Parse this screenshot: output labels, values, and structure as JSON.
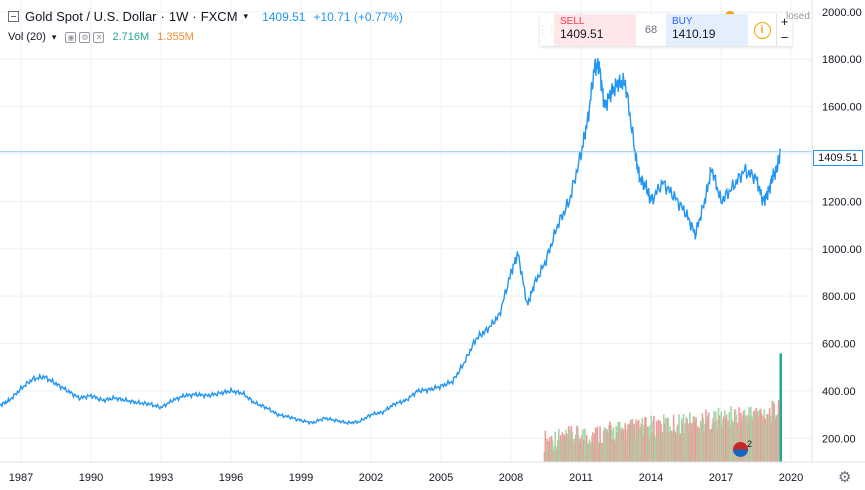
{
  "header": {
    "symbol_name": "Gold Spot / U.S. Dollar",
    "interval": "1W",
    "exchange": "FXCM",
    "last_price": "1409.51",
    "change": "+10.71 (+0.77%)"
  },
  "volume_legend": {
    "label": "Vol (20)",
    "value1": "2.716M",
    "value2": "1.355M"
  },
  "trade_panel": {
    "sell_label": "SELL",
    "sell_price": "1409.51",
    "spread": "68",
    "buy_label": "BUY",
    "buy_price": "1410.19",
    "zoom_in": "+",
    "zoom_out": "−"
  },
  "market_status": "losed",
  "price_tag": "1409.51",
  "event_count": "2",
  "colors": {
    "line": "#2196f3",
    "vol_up": "#a5d6a7",
    "vol_down": "#ef9a9a",
    "vol_last": "#26a69a",
    "grid": "#eef0f3"
  },
  "chart_data": {
    "type": "line",
    "x_range": [
      1986.1,
      2020.9
    ],
    "y_range": [
      100,
      2050
    ],
    "y_ticks": [
      "200.00",
      "400.00",
      "600.00",
      "800.00",
      "1000.00",
      "1200.00",
      "1400.00",
      "1600.00",
      "1800.00",
      "2000.00"
    ],
    "x_ticks": [
      "1987",
      "1990",
      "1993",
      "1996",
      "1999",
      "2002",
      "2005",
      "2008",
      "2011",
      "2014",
      "2017",
      "2020"
    ],
    "last_value": 1409.51,
    "series": [
      {
        "x": [
          1986.1,
          1986.5,
          1987.0,
          1987.5,
          1988.0,
          1988.5,
          1989.0,
          1989.5,
          1990.0,
          1990.5,
          1991.0,
          1991.5,
          1992.0,
          1992.5,
          1993.0,
          1993.5,
          1994.0,
          1994.5,
          1995.0,
          1995.5,
          1996.0,
          1996.5,
          1997.0,
          1997.5,
          1998.0,
          1998.5,
          1999.0,
          1999.5,
          2000.0,
          2000.5,
          2001.0,
          2001.5,
          2002.0,
          2002.5,
          2003.0,
          2003.5,
          2004.0,
          2004.5,
          2005.0,
          2005.5,
          2006.0,
          2006.5,
          2007.0,
          2007.5,
          2008.0,
          2008.3,
          2008.7,
          2009.0,
          2009.5,
          2010.0,
          2010.5,
          2011.0,
          2011.3,
          2011.6,
          2011.8,
          2012.0,
          2012.3,
          2012.6,
          2012.9,
          2013.3,
          2013.5,
          2013.8,
          2014.0,
          2014.5,
          2015.0,
          2015.5,
          2015.9,
          2016.3,
          2016.6,
          2017.0,
          2017.5,
          2018.0,
          2018.5,
          2018.8,
          2019.0,
          2019.2,
          2019.4,
          2019.55
        ],
        "y": [
          340,
          360,
          410,
          450,
          460,
          430,
          400,
          370,
          380,
          360,
          370,
          360,
          350,
          345,
          330,
          360,
          380,
          385,
          380,
          390,
          400,
          390,
          350,
          330,
          300,
          290,
          275,
          265,
          285,
          275,
          265,
          270,
          300,
          310,
          345,
          360,
          400,
          405,
          420,
          440,
          520,
          620,
          660,
          720,
          900,
          980,
          760,
          850,
          950,
          1100,
          1200,
          1400,
          1550,
          1780,
          1760,
          1600,
          1660,
          1700,
          1700,
          1420,
          1300,
          1260,
          1200,
          1280,
          1220,
          1150,
          1060,
          1200,
          1340,
          1200,
          1260,
          1330,
          1300,
          1200,
          1230,
          1300,
          1340,
          1409.51
        ]
      }
    ],
    "volume": {
      "x_start": 2009.4,
      "x_end": 2019.55,
      "max_value": 3000000,
      "last_value": 2716000
    }
  }
}
